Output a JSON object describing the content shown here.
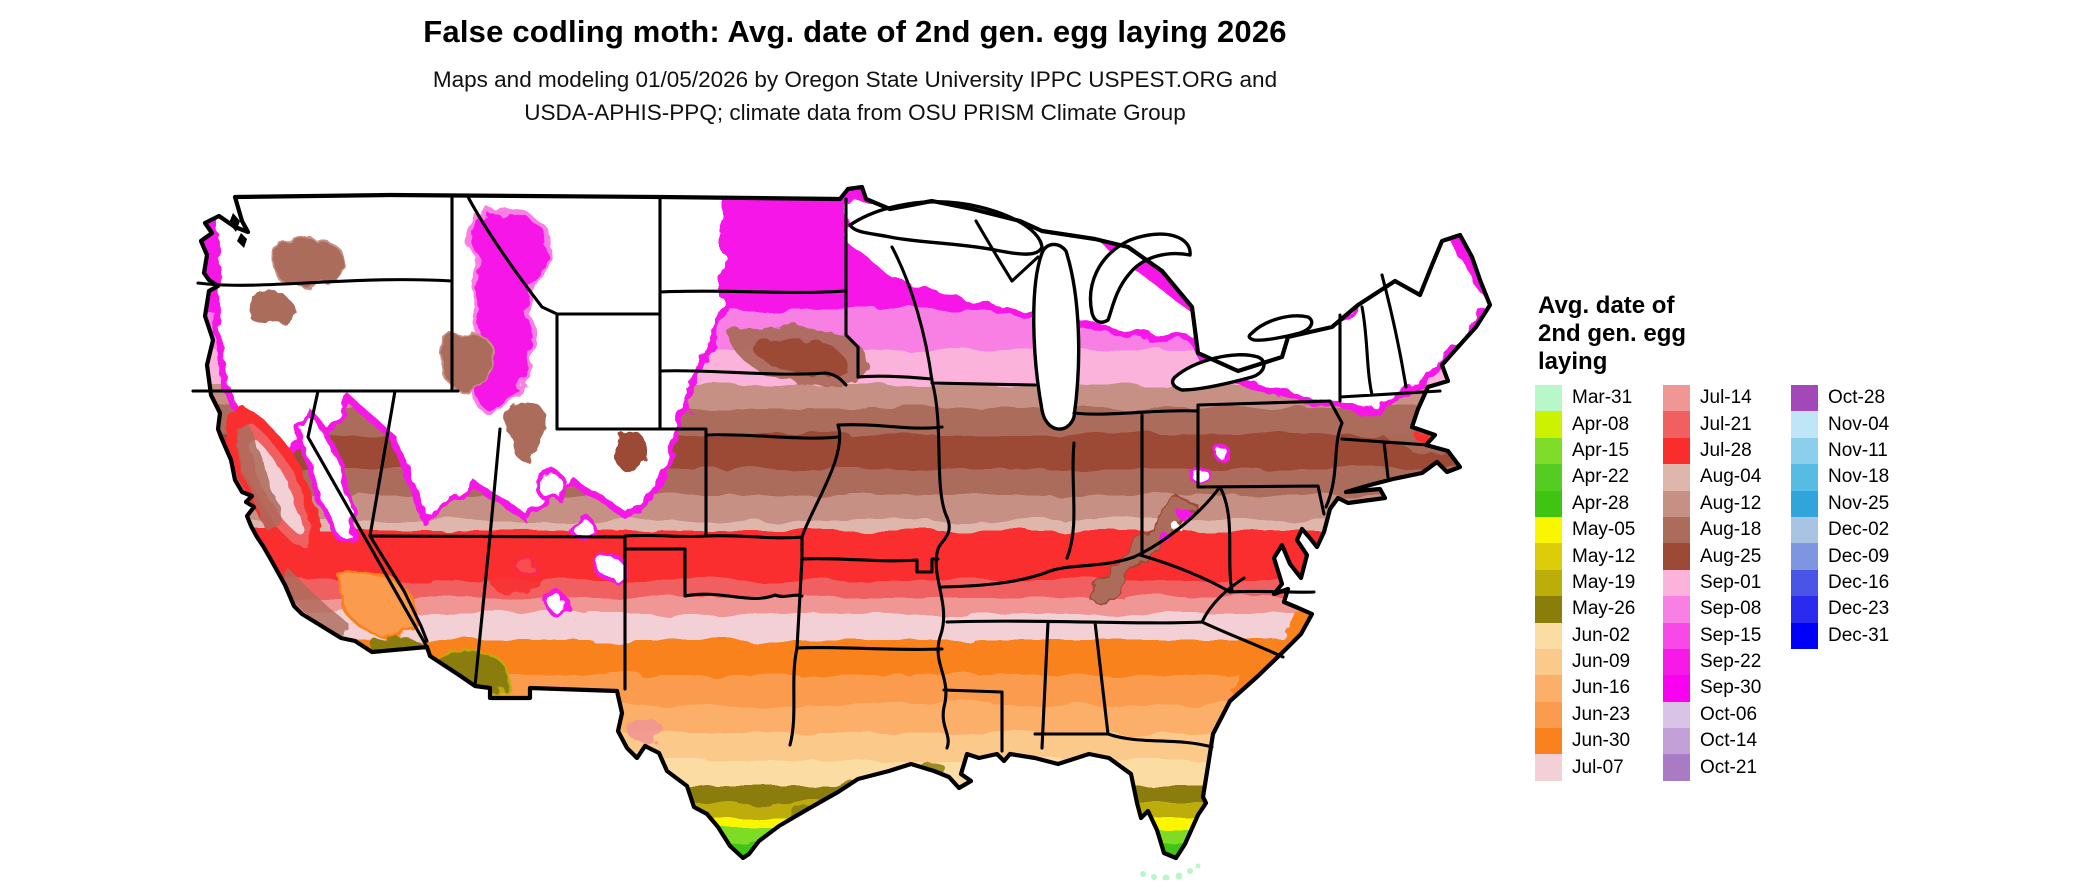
{
  "title": "False codling moth: Avg. date of 2nd gen. egg laying 2026",
  "subtitle": [
    "Maps and modeling 01/05/2026 by Oregon State University IPPC USPEST.ORG and",
    "USDA-APHIS-PPQ; climate data from OSU PRISM Climate Group"
  ],
  "map": {
    "region": "Contiguous United States",
    "no_data_color": "#FFFFFF",
    "state_border_color": "#000000"
  },
  "legend": {
    "title_lines": [
      "Avg. date of",
      "2nd gen. egg",
      "laying"
    ],
    "columns": [
      {
        "entries": [
          {
            "label": "Mar-31",
            "color": "#B8F8C8"
          },
          {
            "label": "Apr-08",
            "color": "#CCF200"
          },
          {
            "label": "Apr-15",
            "color": "#7FDC28"
          },
          {
            "label": "Apr-22",
            "color": "#55CC22"
          },
          {
            "label": "Apr-28",
            "color": "#3FC412"
          },
          {
            "label": "May-05",
            "color": "#FAF500"
          },
          {
            "label": "May-12",
            "color": "#DCCC0A"
          },
          {
            "label": "May-19",
            "color": "#BCAD08"
          },
          {
            "label": "May-26",
            "color": "#8B7D0A"
          },
          {
            "label": "Jun-02",
            "color": "#FBDCA2"
          },
          {
            "label": "Jun-09",
            "color": "#FBC98A"
          },
          {
            "label": "Jun-16",
            "color": "#FBAF69"
          },
          {
            "label": "Jun-23",
            "color": "#FA9B4E"
          },
          {
            "label": "Jun-30",
            "color": "#F9821E"
          },
          {
            "label": "Jul-07",
            "color": "#F2D0D5"
          }
        ]
      },
      {
        "entries": [
          {
            "label": "Jul-14",
            "color": "#F09694"
          },
          {
            "label": "Jul-21",
            "color": "#F06060"
          },
          {
            "label": "Jul-28",
            "color": "#FA2D2D"
          },
          {
            "label": "Aug-04",
            "color": "#DEB6AC"
          },
          {
            "label": "Aug-12",
            "color": "#C69184"
          },
          {
            "label": "Aug-18",
            "color": "#AC6C5B"
          },
          {
            "label": "Aug-25",
            "color": "#9C4A36"
          },
          {
            "label": "Sep-01",
            "color": "#FBB3DC"
          },
          {
            "label": "Sep-08",
            "color": "#F87FE3"
          },
          {
            "label": "Sep-15",
            "color": "#F948E8"
          },
          {
            "label": "Sep-22",
            "color": "#F619E8"
          },
          {
            "label": "Sep-30",
            "color": "#F800F0"
          },
          {
            "label": "Oct-06",
            "color": "#D9C3E6"
          },
          {
            "label": "Oct-14",
            "color": "#C3A0D6"
          },
          {
            "label": "Oct-21",
            "color": "#A97BC4"
          }
        ]
      },
      {
        "entries": [
          {
            "label": "Oct-28",
            "color": "#A348B8"
          },
          {
            "label": "Nov-04",
            "color": "#BFE6F7"
          },
          {
            "label": "Nov-11",
            "color": "#8CCFEC"
          },
          {
            "label": "Nov-18",
            "color": "#57BCE4"
          },
          {
            "label": "Nov-25",
            "color": "#2FA5DA"
          },
          {
            "label": "Dec-02",
            "color": "#A8C4E2"
          },
          {
            "label": "Dec-09",
            "color": "#7E96E2"
          },
          {
            "label": "Dec-16",
            "color": "#4A55E8"
          },
          {
            "label": "Dec-23",
            "color": "#2A2BEE"
          },
          {
            "label": "Dec-31",
            "color": "#0000F8"
          }
        ]
      }
    ]
  }
}
